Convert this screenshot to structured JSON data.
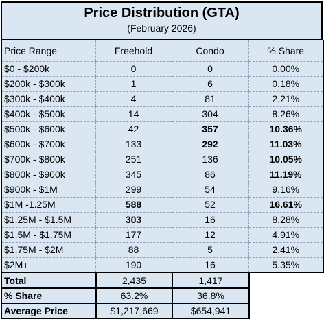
{
  "title": "Price Distribution (GTA)",
  "subtitle": "(February 2026)",
  "columns": [
    "Price Range",
    "Freehold",
    "Condo",
    "% Share"
  ],
  "rows": [
    {
      "range": "$0 - $200k",
      "freehold": "0",
      "condo": "0",
      "share": "0.00%"
    },
    {
      "range": "$200k - $300k",
      "freehold": "1",
      "condo": "6",
      "share": "0.18%"
    },
    {
      "range": "$300k - $400k",
      "freehold": "4",
      "condo": "81",
      "share": "2.21%"
    },
    {
      "range": "$400k - $500k",
      "freehold": "14",
      "condo": "304",
      "share": "8.26%"
    },
    {
      "range": "$500k - $600k",
      "freehold": "42",
      "condo": "357",
      "share": "10.36%"
    },
    {
      "range": "$600k - $700k",
      "freehold": "133",
      "condo": "292",
      "share": "11.03%"
    },
    {
      "range": "$700k - $800k",
      "freehold": "251",
      "condo": "136",
      "share": "10.05%"
    },
    {
      "range": "$800k - $900k",
      "freehold": "345",
      "condo": "86",
      "share": "11.19%"
    },
    {
      "range": "$900k - $1M",
      "freehold": "299",
      "condo": "54",
      "share": "9.16%"
    },
    {
      "range": "$1M -1.25M",
      "freehold": "588",
      "condo": "52",
      "share": "16.61%"
    },
    {
      "range": "$1.25M - $1.5M",
      "freehold": "303",
      "condo": "16",
      "share": "8.28%"
    },
    {
      "range": "$1.5M - $1.75M",
      "freehold": "177",
      "condo": "12",
      "share": "4.91%"
    },
    {
      "range": "$1.75M - $2M",
      "freehold": "88",
      "condo": "5",
      "share": "2.41%"
    },
    {
      "range": "$2M+",
      "freehold": "190",
      "condo": "16",
      "share": "5.35%"
    }
  ],
  "summary": {
    "total": {
      "label": "Total",
      "freehold": "2,435",
      "condo": "1,417"
    },
    "share": {
      "label": "% Share",
      "freehold": "63.2%",
      "condo": "36.8%"
    },
    "average": {
      "label": "Average Price",
      "freehold": "$1,217,669",
      "condo": "$654,941"
    }
  },
  "bold_cells": {
    "condo": [
      4,
      5
    ],
    "freehold": [
      9,
      10
    ],
    "share": [
      4,
      5,
      6,
      7,
      9
    ]
  }
}
